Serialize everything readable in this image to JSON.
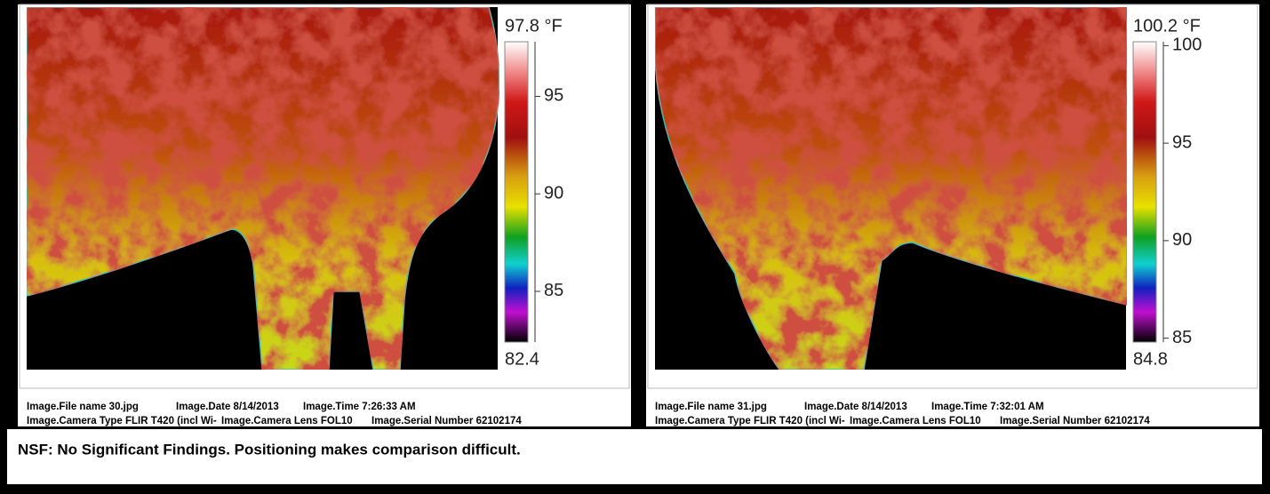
{
  "panels": [
    {
      "scale": {
        "max": {
          "value": 97.8,
          "label": "97.8 °F"
        },
        "min": 82.4,
        "ticks": [
          95,
          90,
          85
        ]
      },
      "meta": [
        [
          "Image.File name 30.jpg",
          "Image.Date 8/14/2013",
          "Image.Time 7:26:33 AM"
        ],
        [
          "Image.Camera Type FLIR T420 (incl Wi-",
          "Image.Camera Lens FOL10",
          "Image.Serial Number 62102174"
        ]
      ]
    },
    {
      "scale": {
        "max": {
          "value": 100.2,
          "label": "100.2 °F"
        },
        "min": 84.8,
        "ticks": [
          100,
          95,
          90,
          85
        ]
      },
      "meta": [
        [
          "Image.File name 31.jpg",
          "Image.Date 8/14/2013",
          "Image.Time 7:32:01 AM"
        ],
        [
          "Image.Camera Type FLIR T420 (incl Wi-",
          "Image.Camera Lens FOL10",
          "Image.Serial Number 62102174"
        ]
      ]
    }
  ],
  "finding": "NSF:  No Significant Findings. Positioning makes comparison difficult."
}
